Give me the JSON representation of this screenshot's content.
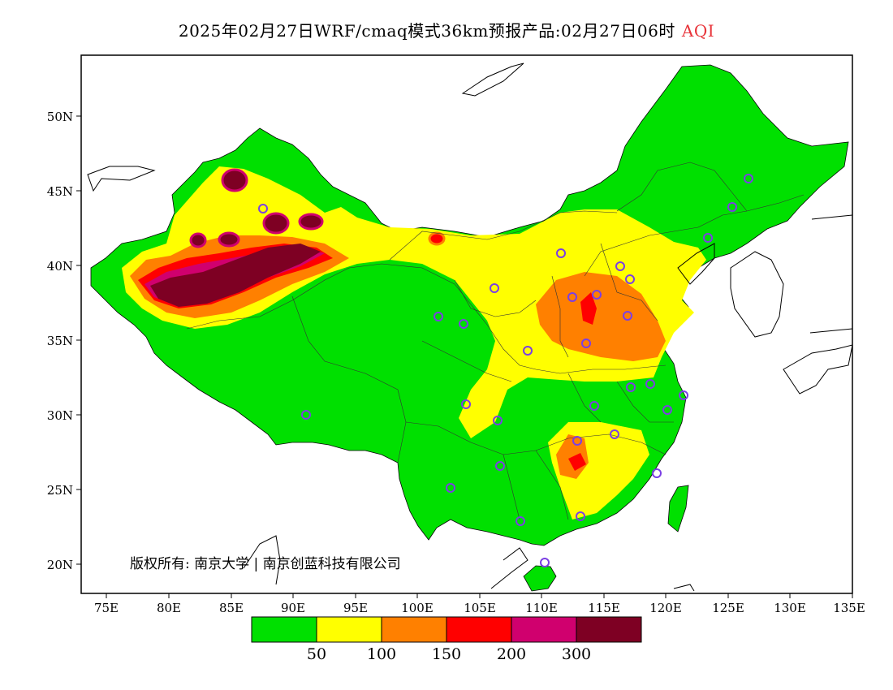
{
  "header": {
    "title": "2025年02月27日WRF/cmaq模式36km预报产品:02月27日06时",
    "tag": "AQI",
    "tag_color": "#e8343a"
  },
  "axes": {
    "lat_labels": [
      "50N",
      "45N",
      "40N",
      "35N",
      "30N",
      "25N",
      "20N"
    ],
    "lon_labels": [
      "75E",
      "80E",
      "85E",
      "90E",
      "95E",
      "100E",
      "105E",
      "110E",
      "115E",
      "120E",
      "125E",
      "130E",
      "135E"
    ]
  },
  "legend": {
    "colors": [
      "#00e000",
      "#ffff00",
      "#ff8000",
      "#ff0000",
      "#d0006e",
      "#7e0023"
    ],
    "labels": [
      "50",
      "100",
      "150",
      "200",
      "300"
    ]
  },
  "copyright": "版权所有: 南京大学 | 南京创蓝科技有限公司",
  "stations_icon": "circle-marker-icon"
}
